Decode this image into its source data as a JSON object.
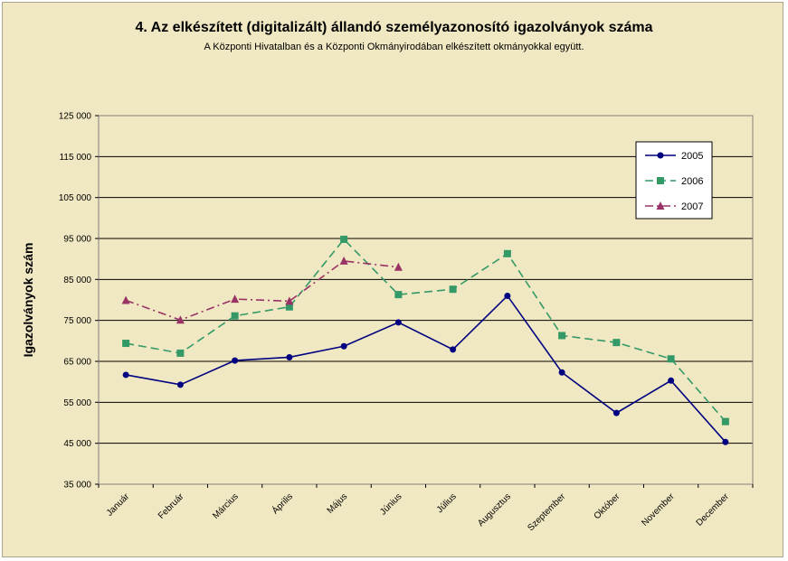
{
  "chart_data": {
    "type": "line",
    "title": "4. Az elkészített (digitalizált) állandó személyazonosító igazolványok száma",
    "subtitle": "A Központi Hivatalban és a Központi Okmányirodában elkészített okmányokkal együtt.",
    "ylabel": "Igazolványok szám",
    "xlabel": "",
    "ylim": [
      35000,
      125000
    ],
    "yticks": [
      35000,
      45000,
      55000,
      65000,
      75000,
      85000,
      95000,
      105000,
      115000,
      125000
    ],
    "ytick_labels": [
      "35 000",
      "45 000",
      "55 000",
      "65 000",
      "75 000",
      "85 000",
      "95 000",
      "105 000",
      "115 000",
      "125 000"
    ],
    "grid": "horizontal",
    "legend_position": "top-right",
    "categories": [
      "Január",
      "Február",
      "Március",
      "Április",
      "Május",
      "Június",
      "Július",
      "Augusztus",
      "Szeptember",
      "Október",
      "November",
      "December"
    ],
    "series": [
      {
        "name": "2005",
        "color": "#000080",
        "marker": "circle",
        "dash": "solid",
        "values": [
          61700,
          59300,
          65200,
          66000,
          68700,
          74500,
          67900,
          81000,
          62300,
          52400,
          60300,
          45300
        ]
      },
      {
        "name": "2006",
        "color": "#339966",
        "marker": "square",
        "dash": "dashed",
        "values": [
          69400,
          67000,
          76100,
          78300,
          94800,
          81300,
          82600,
          91300,
          71300,
          69600,
          65600,
          50300
        ]
      },
      {
        "name": "2007",
        "color": "#993366",
        "marker": "triangle",
        "dash": "dashdot",
        "values": [
          79900,
          75100,
          80200,
          79700,
          89500,
          88000,
          null,
          null,
          null,
          null,
          null,
          null
        ]
      }
    ]
  }
}
